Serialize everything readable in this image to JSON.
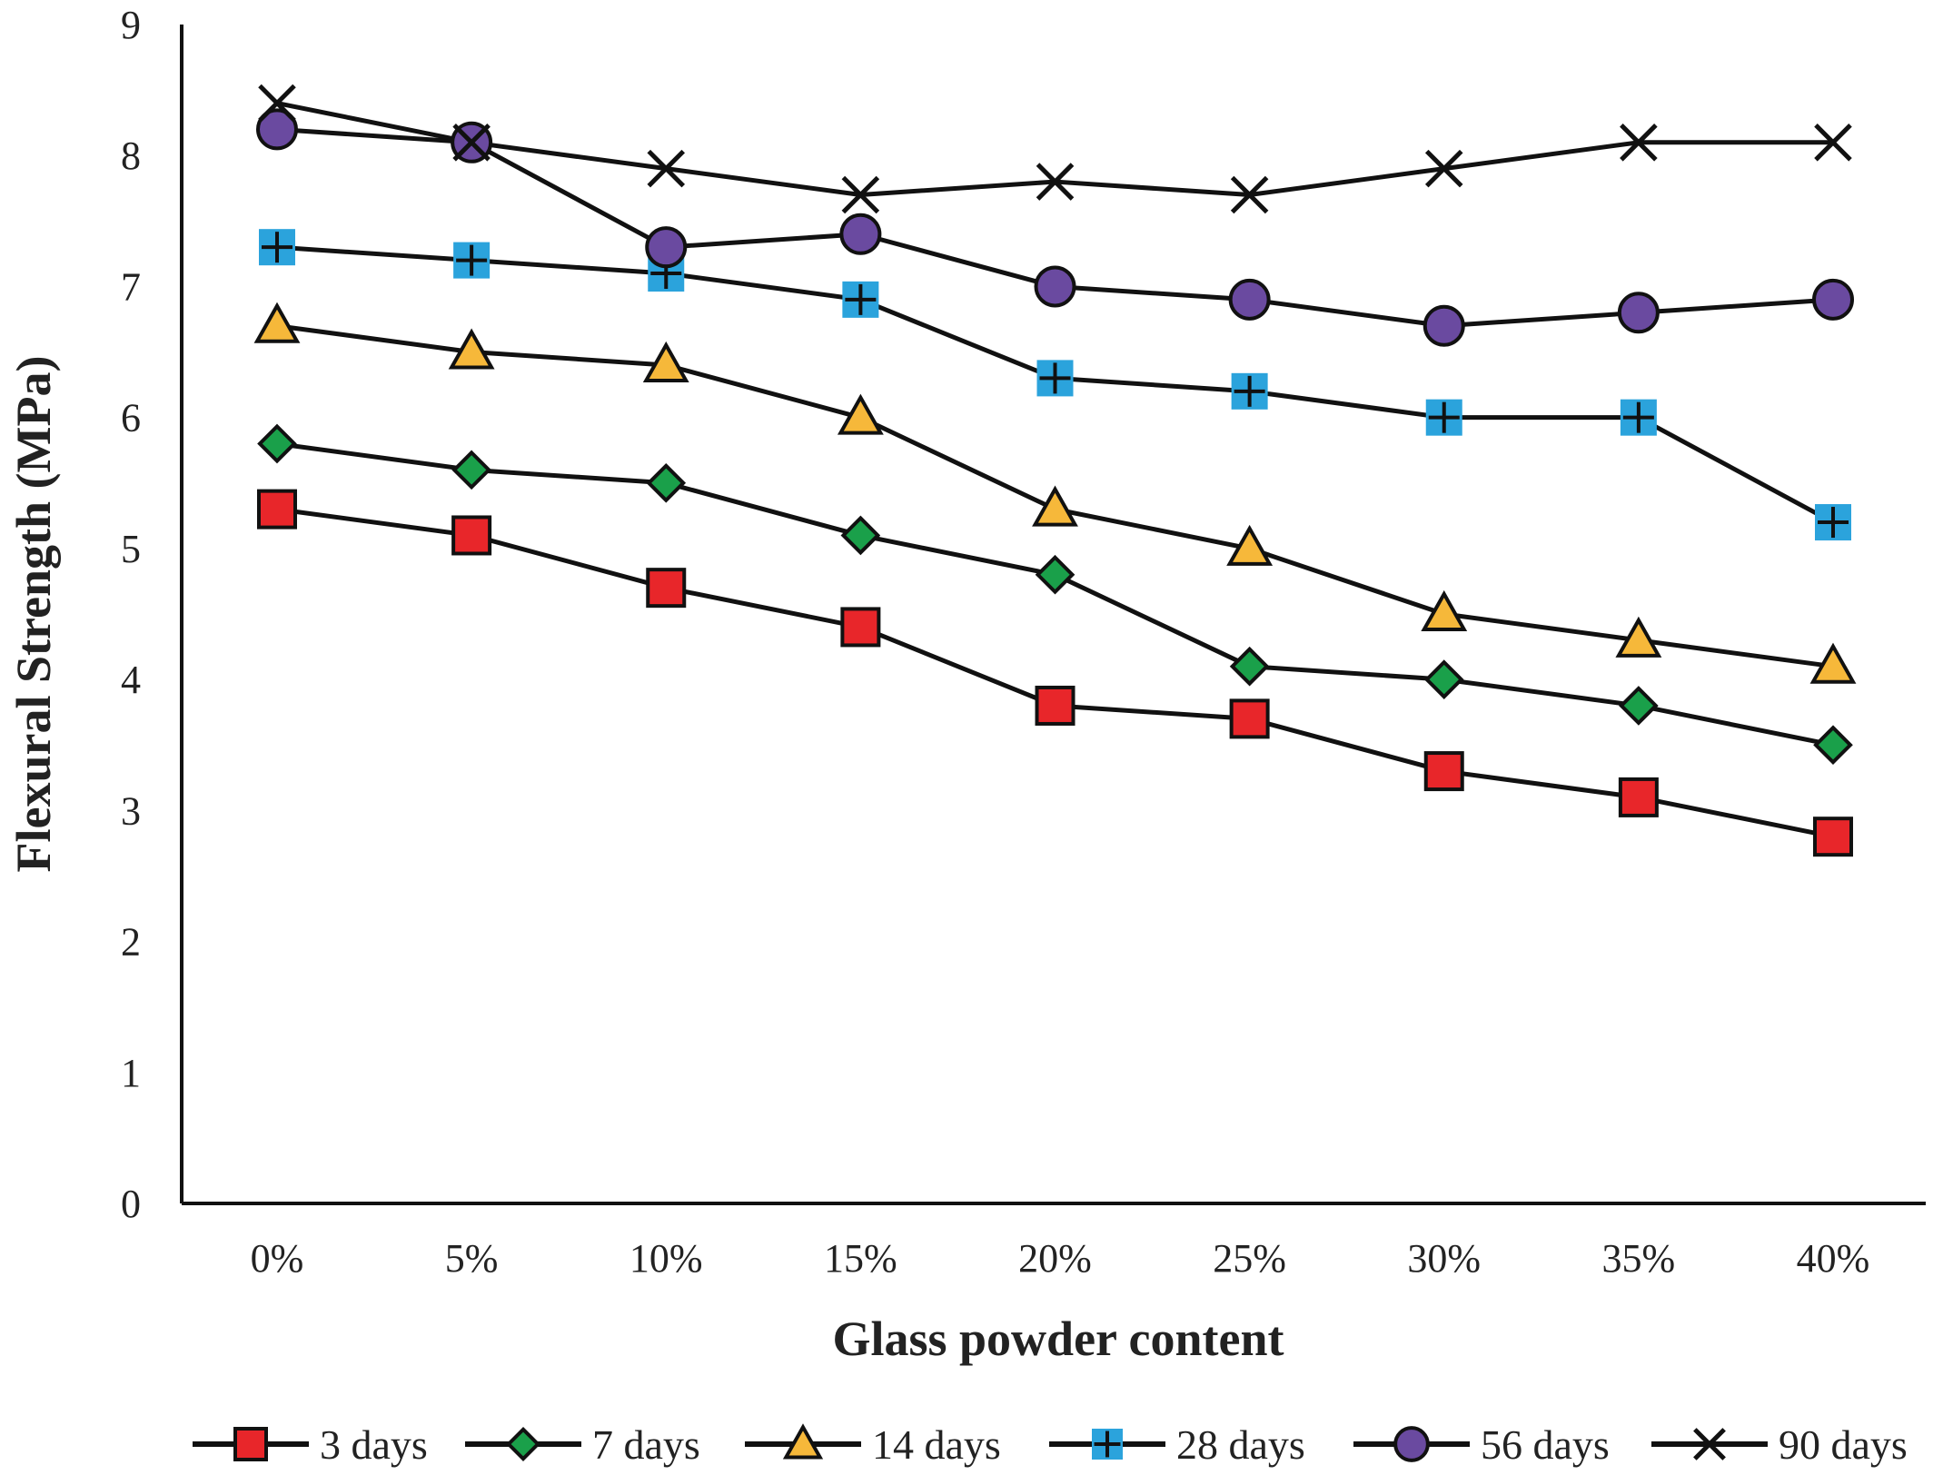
{
  "chart_data": {
    "type": "line",
    "title": "",
    "xlabel": "Glass powder content",
    "ylabel": "Flexural Strength (MPa)",
    "categories": [
      "0%",
      "5%",
      "10%",
      "15%",
      "20%",
      "25%",
      "30%",
      "35%",
      "40%"
    ],
    "ylim": [
      0,
      9
    ],
    "yticks": [
      0,
      1,
      2,
      3,
      4,
      5,
      6,
      7,
      8,
      9
    ],
    "grid": false,
    "legend_position": "bottom",
    "series": [
      {
        "name": "3 days",
        "marker": "square",
        "color": "#e8262a",
        "values": [
          5.3,
          5.1,
          4.7,
          4.4,
          3.8,
          3.7,
          3.3,
          3.1,
          2.8
        ]
      },
      {
        "name": "7 days",
        "marker": "diamond",
        "color": "#1aa04a",
        "values": [
          5.8,
          5.6,
          5.5,
          5.1,
          4.8,
          4.1,
          4.0,
          3.8,
          3.5
        ]
      },
      {
        "name": "14 days",
        "marker": "triangle",
        "color": "#f6b83a",
        "values": [
          6.7,
          6.5,
          6.4,
          6.0,
          5.3,
          5.0,
          4.5,
          4.3,
          4.1
        ]
      },
      {
        "name": "28 days",
        "marker": "plus-square",
        "color": "#2ba3dc",
        "values": [
          7.3,
          7.2,
          7.1,
          6.9,
          6.3,
          6.2,
          6.0,
          6.0,
          5.2
        ]
      },
      {
        "name": "56 days",
        "marker": "circle",
        "color": "#6a4aa0",
        "values": [
          8.2,
          8.1,
          7.3,
          7.4,
          7.0,
          6.9,
          6.7,
          6.8,
          6.9
        ]
      },
      {
        "name": "90 days",
        "marker": "x",
        "color": "#111111",
        "values": [
          8.4,
          8.1,
          7.9,
          7.7,
          7.8,
          7.7,
          7.9,
          8.1,
          8.1
        ]
      }
    ]
  }
}
